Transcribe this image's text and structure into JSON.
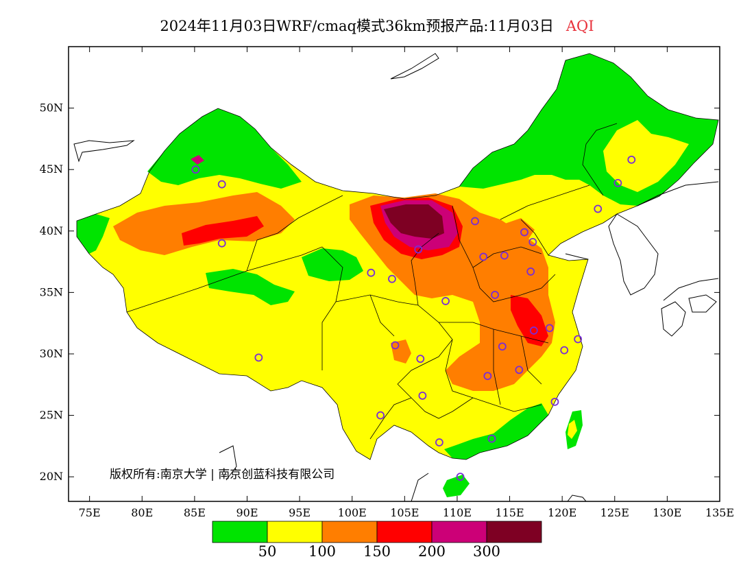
{
  "title": {
    "text": "2024年11月03日WRF/cmaq模式36km预报产品:11月03日",
    "variable": "AQI"
  },
  "map": {
    "lon_range": [
      73,
      135
    ],
    "lat_range": [
      18,
      55
    ],
    "x_ticks": [
      "75E",
      "80E",
      "85E",
      "90E",
      "95E",
      "100E",
      "105E",
      "110E",
      "115E",
      "120E",
      "125E",
      "130E",
      "135E"
    ],
    "y_ticks": [
      "20N",
      "25N",
      "30N",
      "35N",
      "40N",
      "45N",
      "50N"
    ],
    "copyright": "版权所有:南京大学 | 南京创蓝科技有限公司",
    "station_marker": "purple-circle",
    "city_markers_count": 31
  },
  "legend": {
    "colors": [
      "#00e400",
      "#ffff00",
      "#ff7e00",
      "#ff0000",
      "#cc0077",
      "#7e0023"
    ],
    "labels": [
      "50",
      "100",
      "150",
      "200",
      "300"
    ]
  }
}
